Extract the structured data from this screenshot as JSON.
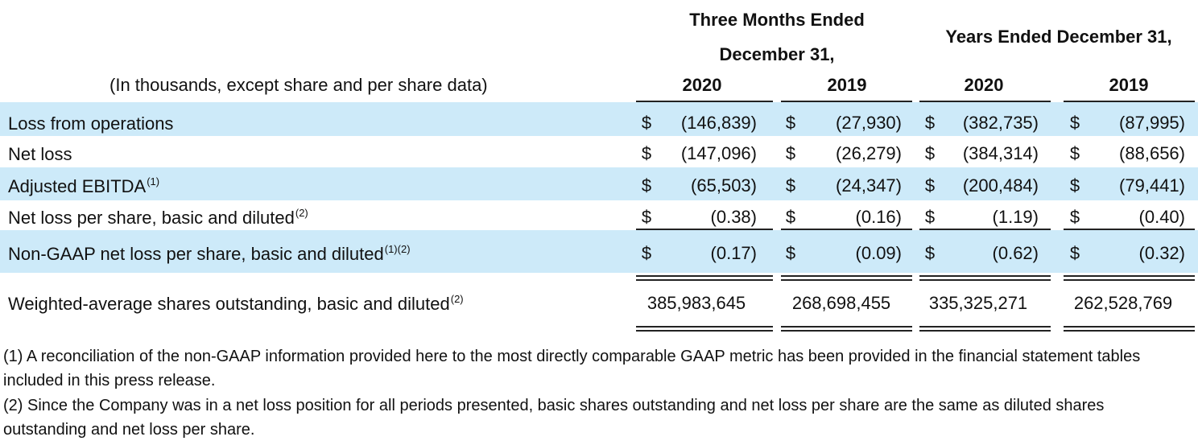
{
  "header": {
    "qtr_title": "Three Months Ended",
    "qtr_subtitle": "December 31,",
    "yr_title": "Years Ended December 31,",
    "units_note": "(In thousands, except share and per share data)",
    "years": [
      "2020",
      "2019",
      "2020",
      "2019"
    ]
  },
  "rows": [
    {
      "label": "Loss from operations",
      "sup": "",
      "cur": [
        "$",
        "$",
        "$",
        "$"
      ],
      "values": [
        "(146,839)",
        "(27,930)",
        "(382,735)",
        "(87,995)"
      ]
    },
    {
      "label": "Net loss",
      "sup": "",
      "cur": [
        "$",
        "$",
        "$",
        "$"
      ],
      "values": [
        "(147,096)",
        "(26,279)",
        "(384,314)",
        "(88,656)"
      ]
    },
    {
      "label": "Adjusted EBITDA",
      "sup": "(1)",
      "cur": [
        "$",
        "$",
        "$",
        "$"
      ],
      "values": [
        "(65,503)",
        "(24,347)",
        "(200,484)",
        "(79,441)"
      ]
    },
    {
      "label": "Net loss per share, basic and diluted",
      "sup": "(2)",
      "cur": [
        "$",
        "$",
        "$",
        "$"
      ],
      "values": [
        "(0.38)",
        "(0.16)",
        "(1.19)",
        "(0.40)"
      ]
    },
    {
      "label": "Non-GAAP net loss per share, basic and diluted",
      "sup": "(1)(2)",
      "cur": [
        "$",
        "$",
        "$",
        "$"
      ],
      "values": [
        "(0.17)",
        "(0.09)",
        "(0.62)",
        "(0.32)"
      ]
    },
    {
      "label": "Weighted-average shares outstanding, basic and diluted",
      "sup": "(2)",
      "cur": [
        "",
        "",
        "",
        ""
      ],
      "values": [
        "385,983,645",
        "268,698,455",
        "335,325,271",
        "262,528,769"
      ]
    }
  ],
  "footnotes": [
    "(1) A reconciliation of the non-GAAP information provided here to the most directly comparable GAAP metric has been provided in the financial statement tables included in this press release.",
    "(2) Since the Company was in a net loss position for all periods presented, basic shares outstanding and net loss per share are the same as diluted shares outstanding and net loss per share."
  ],
  "colors": {
    "band": "#cdeaf9"
  }
}
